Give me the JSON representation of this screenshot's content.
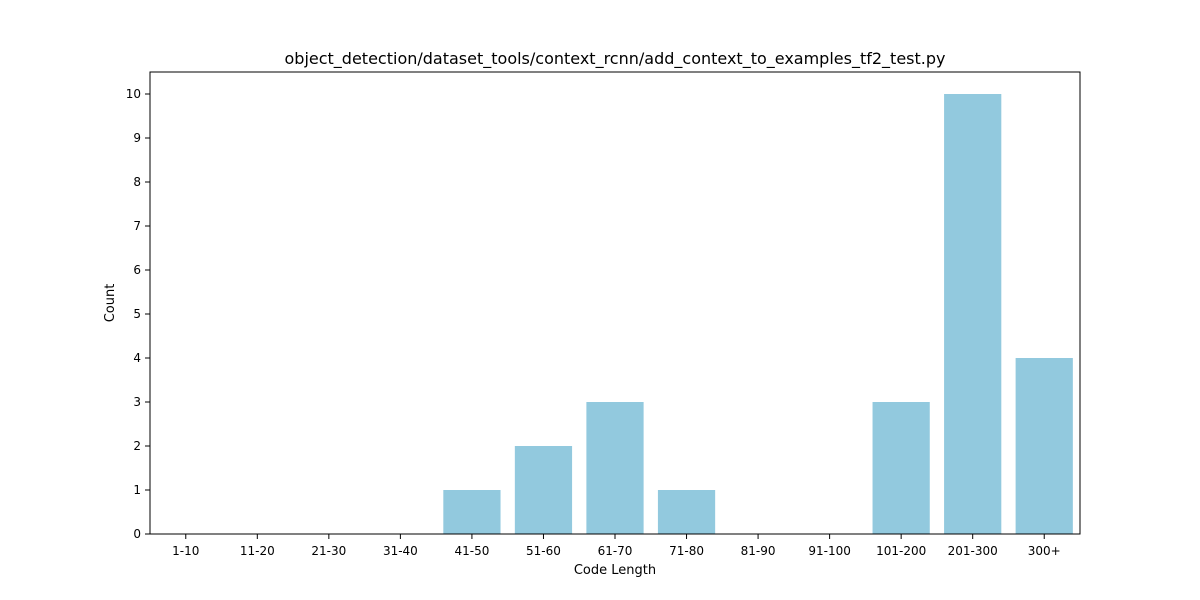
{
  "colors": {
    "bar": "#92c9de",
    "axis": "#000000",
    "background": "#ffffff"
  },
  "chart_data": {
    "type": "bar",
    "title": "object_detection/dataset_tools/context_rcnn/add_context_to_examples_tf2_test.py",
    "xlabel": "Code Length",
    "ylabel": "Count",
    "categories": [
      "1-10",
      "11-20",
      "21-30",
      "31-40",
      "41-50",
      "51-60",
      "61-70",
      "71-80",
      "81-90",
      "91-100",
      "101-200",
      "201-300",
      "300+"
    ],
    "values": [
      0,
      0,
      0,
      0,
      1,
      2,
      3,
      1,
      0,
      0,
      3,
      10,
      4
    ],
    "ylim": [
      0,
      10.5
    ],
    "yticks": [
      0,
      1,
      2,
      3,
      4,
      5,
      6,
      7,
      8,
      9,
      10
    ],
    "grid": false,
    "legend": "none"
  }
}
